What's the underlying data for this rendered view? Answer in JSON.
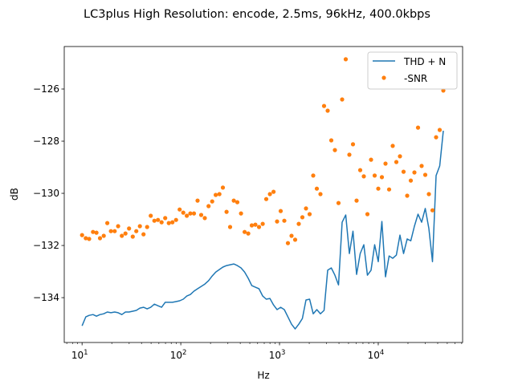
{
  "chart_data": {
    "type": "line",
    "title": "LC3plus High Resolution: encode, 2.5ms, 96kHz, 400.0kbps",
    "xlabel": "Hz",
    "ylabel": "dB",
    "xscale": "log",
    "xlim": [
      6.6,
      71500
    ],
    "ylim": [
      -135.72,
      -124.37
    ],
    "grid": false,
    "legend_position": "top-right",
    "yticks": [
      {
        "value": -134,
        "label": "−134"
      },
      {
        "value": -132,
        "label": "−132"
      },
      {
        "value": -130,
        "label": "−130"
      },
      {
        "value": -128,
        "label": "−128"
      },
      {
        "value": -126,
        "label": "−126"
      }
    ],
    "xticks": [
      {
        "value": 10,
        "base": "10",
        "exp": "1"
      },
      {
        "value": 100,
        "base": "10",
        "exp": "2"
      },
      {
        "value": 1000,
        "base": "10",
        "exp": "3"
      },
      {
        "value": 10000,
        "base": "10",
        "exp": "4"
      }
    ],
    "x": [
      10.0,
      10.9,
      11.8,
      12.9,
      14.0,
      15.2,
      16.6,
      18.0,
      19.6,
      21.4,
      23.2,
      25.3,
      27.5,
      29.9,
      32.6,
      35.4,
      38.5,
      41.9,
      45.6,
      49.6,
      54.0,
      58.7,
      63.9,
      69.5,
      75.6,
      82.3,
      89.5,
      97.4,
      106,
      115,
      125,
      136,
      148,
      161,
      175,
      191,
      208,
      226,
      246,
      267,
      291,
      316,
      344,
      374,
      407,
      443,
      482,
      524,
      570,
      620,
      675,
      734,
      799,
      869,
      945,
      1028,
      1119,
      1217,
      1324,
      1440,
      1567,
      1705,
      1855,
      2018,
      2195,
      2388,
      2598,
      2826,
      3075,
      3345,
      3639,
      3959,
      4307,
      4686,
      5098,
      5546,
      6033,
      6564,
      7141,
      7769,
      8451,
      9194,
      10002,
      10882,
      11838,
      12879,
      14011,
      15243,
      16583,
      18041,
      19627,
      21352,
      23229,
      25271,
      27493,
      29910,
      32539,
      35400,
      38512,
      41898,
      45581
    ],
    "series": [
      {
        "name": "THD + N",
        "style": "line",
        "color": "#1f77b4",
        "values": [
          -135.08,
          -134.74,
          -134.68,
          -134.65,
          -134.71,
          -134.65,
          -134.62,
          -134.55,
          -134.58,
          -134.55,
          -134.58,
          -134.65,
          -134.55,
          -134.55,
          -134.52,
          -134.49,
          -134.4,
          -134.37,
          -134.43,
          -134.37,
          -134.25,
          -134.31,
          -134.37,
          -134.18,
          -134.18,
          -134.18,
          -134.15,
          -134.12,
          -134.06,
          -133.94,
          -133.88,
          -133.75,
          -133.66,
          -133.57,
          -133.48,
          -133.35,
          -133.17,
          -133.02,
          -132.92,
          -132.83,
          -132.77,
          -132.74,
          -132.71,
          -132.77,
          -132.86,
          -133.02,
          -133.26,
          -133.54,
          -133.6,
          -133.66,
          -133.94,
          -134.06,
          -134.03,
          -134.28,
          -134.46,
          -134.37,
          -134.46,
          -134.74,
          -135.02,
          -135.2,
          -135.02,
          -134.8,
          -134.09,
          -134.06,
          -134.62,
          -134.46,
          -134.62,
          -134.49,
          -132.95,
          -132.86,
          -133.14,
          -133.51,
          -131.11,
          -130.83,
          -132.31,
          -131.45,
          -133.11,
          -132.31,
          -131.97,
          -133.14,
          -132.95,
          -131.97,
          -132.62,
          -131.08,
          -133.2,
          -132.4,
          -132.49,
          -132.37,
          -131.6,
          -132.31,
          -131.75,
          -131.82,
          -131.26,
          -130.8,
          -131.11,
          -130.58,
          -131.35,
          -132.62,
          -129.32,
          -128.95,
          -127.6
        ]
      },
      {
        "name": "-SNR",
        "style": "markers",
        "color": "#ff7f0e",
        "values": [
          -131.6,
          -131.72,
          -131.75,
          -131.48,
          -131.51,
          -131.72,
          -131.63,
          -131.14,
          -131.45,
          -131.45,
          -131.26,
          -131.63,
          -131.54,
          -131.35,
          -131.66,
          -131.45,
          -131.26,
          -131.57,
          -131.29,
          -130.86,
          -131.05,
          -131.02,
          -131.11,
          -130.95,
          -131.14,
          -131.11,
          -131.02,
          -130.62,
          -130.74,
          -130.86,
          -130.77,
          -130.77,
          -130.28,
          -130.83,
          -130.95,
          -130.49,
          -130.31,
          -130.06,
          -130.03,
          -129.78,
          -130.71,
          -131.29,
          -130.28,
          -130.34,
          -130.77,
          -131.48,
          -131.54,
          -131.23,
          -131.2,
          -131.29,
          -131.17,
          -130.22,
          -130.03,
          -129.94,
          -131.08,
          -130.68,
          -131.05,
          -131.91,
          -131.63,
          -131.78,
          -131.17,
          -130.92,
          -130.58,
          -130.8,
          -129.32,
          -129.82,
          -130.03,
          -126.65,
          -126.83,
          -127.97,
          -128.34,
          -130.37,
          -126.4,
          -124.86,
          -128.52,
          -128.12,
          -130.28,
          -129.11,
          -129.35,
          -130.8,
          -128.71,
          -129.32,
          -129.82,
          -129.38,
          -128.86,
          -129.85,
          -128.18,
          -128.8,
          -128.58,
          -129.17,
          -130.09,
          -129.51,
          -129.2,
          -127.48,
          -128.95,
          -129.29,
          -130.03,
          -130.65,
          -127.85,
          -127.57,
          -126.06
        ]
      }
    ]
  }
}
